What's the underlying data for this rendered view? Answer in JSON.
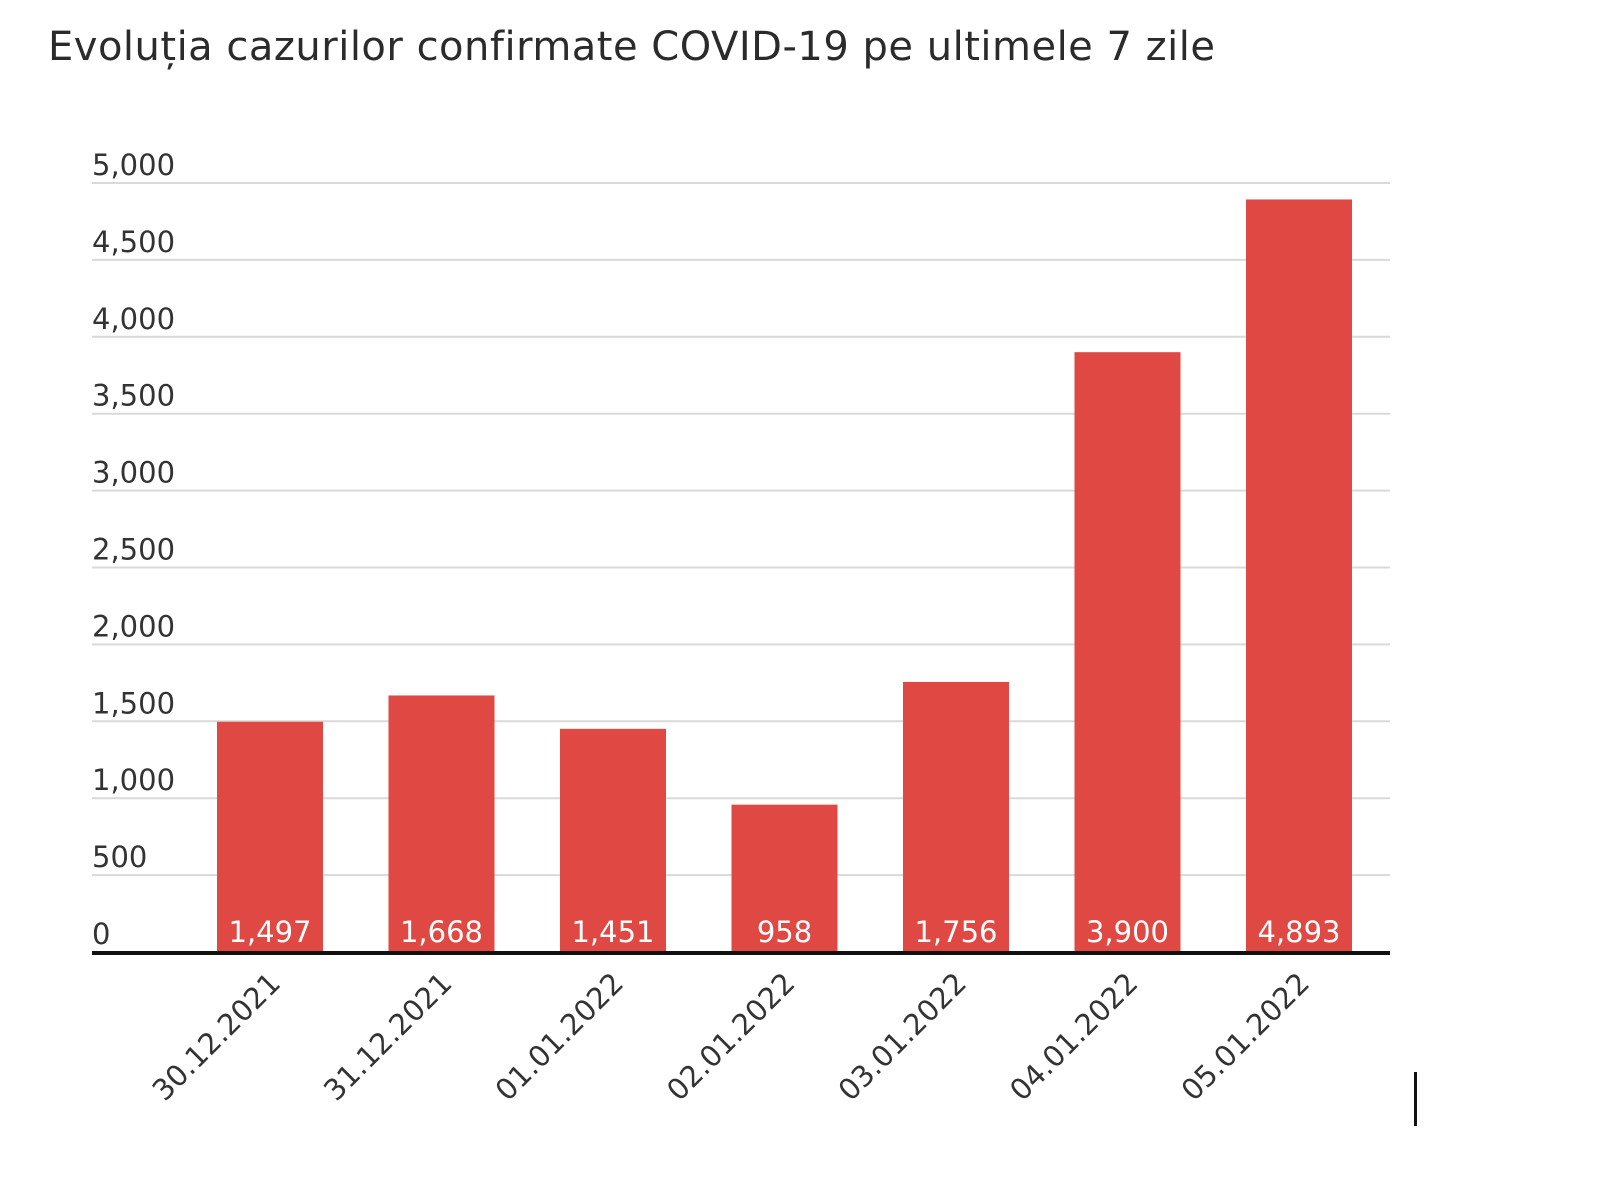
{
  "chart_data": {
    "type": "bar",
    "title": "Evoluția cazurilor confirmate COVID-19 pe ultimele 7 zile",
    "xlabel": "",
    "ylabel": "",
    "categories": [
      "30.12.2021",
      "31.12.2021",
      "01.01.2022",
      "02.01.2022",
      "03.01.2022",
      "04.01.2022",
      "05.01.2022"
    ],
    "values": [
      1497,
      1668,
      1451,
      958,
      1756,
      3900,
      4893
    ],
    "data_labels": [
      "1,497",
      "1,668",
      "1,451",
      "958",
      "1,756",
      "3,900",
      "4,893"
    ],
    "ylim": [
      0,
      5000
    ],
    "yticks": [
      0,
      500,
      1000,
      1500,
      2000,
      2500,
      3000,
      3500,
      4000,
      4500,
      5000
    ],
    "ytick_labels": [
      "0",
      "500",
      "1,000",
      "1,500",
      "2,000",
      "2,500",
      "3,000",
      "3,500",
      "4,000",
      "4,500",
      "5,000"
    ],
    "grid": true,
    "legend": "none",
    "colors": {
      "bar": "#e04843",
      "grid": "#d9d9d9",
      "axis": "#111111",
      "text": "#333333",
      "data_label": "#ffffff"
    }
  }
}
